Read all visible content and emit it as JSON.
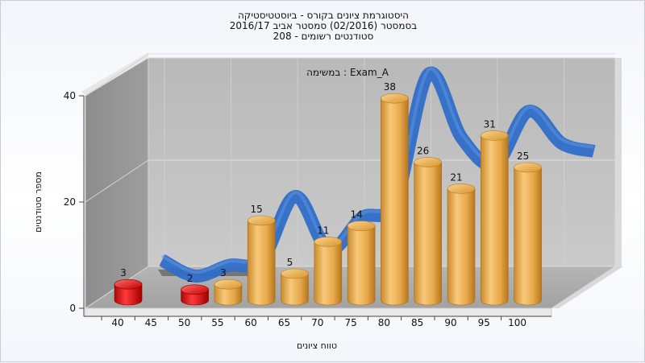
{
  "titles": {
    "line1": "היסטוגרמת ציונים בקורס - ביוסטטיסטיקה",
    "line2": "בסמסטר  (02/2016)  סמסטר אביב 2016/17",
    "line3": "סטודנטים רשומים - 208"
  },
  "chart_data": {
    "type": "bar",
    "title": "היסטוגרמת ציונים בקורס - ביוסטטיסטיקה",
    "xlabel": "טווח ציונים",
    "ylabel": "מספר סטודנטים",
    "legend": "במשימה : Exam_A",
    "ylim": [
      0,
      40
    ],
    "y_ticks": [
      0,
      20,
      40
    ],
    "x_ticks": [
      "40",
      "45",
      "50",
      "55",
      "60",
      "65",
      "70",
      "75",
      "80",
      "85",
      "90",
      "95",
      "100"
    ],
    "bins": [
      {
        "start": 40,
        "value": 3,
        "color": "#dd1111"
      },
      {
        "start": 45,
        "value": 0,
        "color": "#dd1111"
      },
      {
        "start": 50,
        "value": 2,
        "color": "#dd1111"
      },
      {
        "start": 55,
        "value": 3,
        "color": "#e7a94a"
      },
      {
        "start": 60,
        "value": 15,
        "color": "#e7a94a"
      },
      {
        "start": 65,
        "value": 5,
        "color": "#e7a94a"
      },
      {
        "start": 70,
        "value": 11,
        "color": "#e7a94a"
      },
      {
        "start": 75,
        "value": 14,
        "color": "#e7a94a"
      },
      {
        "start": 80,
        "value": 38,
        "color": "#e7a94a"
      },
      {
        "start": 85,
        "value": 26,
        "color": "#e7a94a"
      },
      {
        "start": 90,
        "value": 21,
        "color": "#e7a94a"
      },
      {
        "start": 95,
        "value": 31,
        "color": "#e7a94a"
      },
      {
        "start": 100,
        "value": 25,
        "color": "#e7a94a"
      }
    ],
    "curve_color": "#2f6ec8",
    "grid": true
  }
}
